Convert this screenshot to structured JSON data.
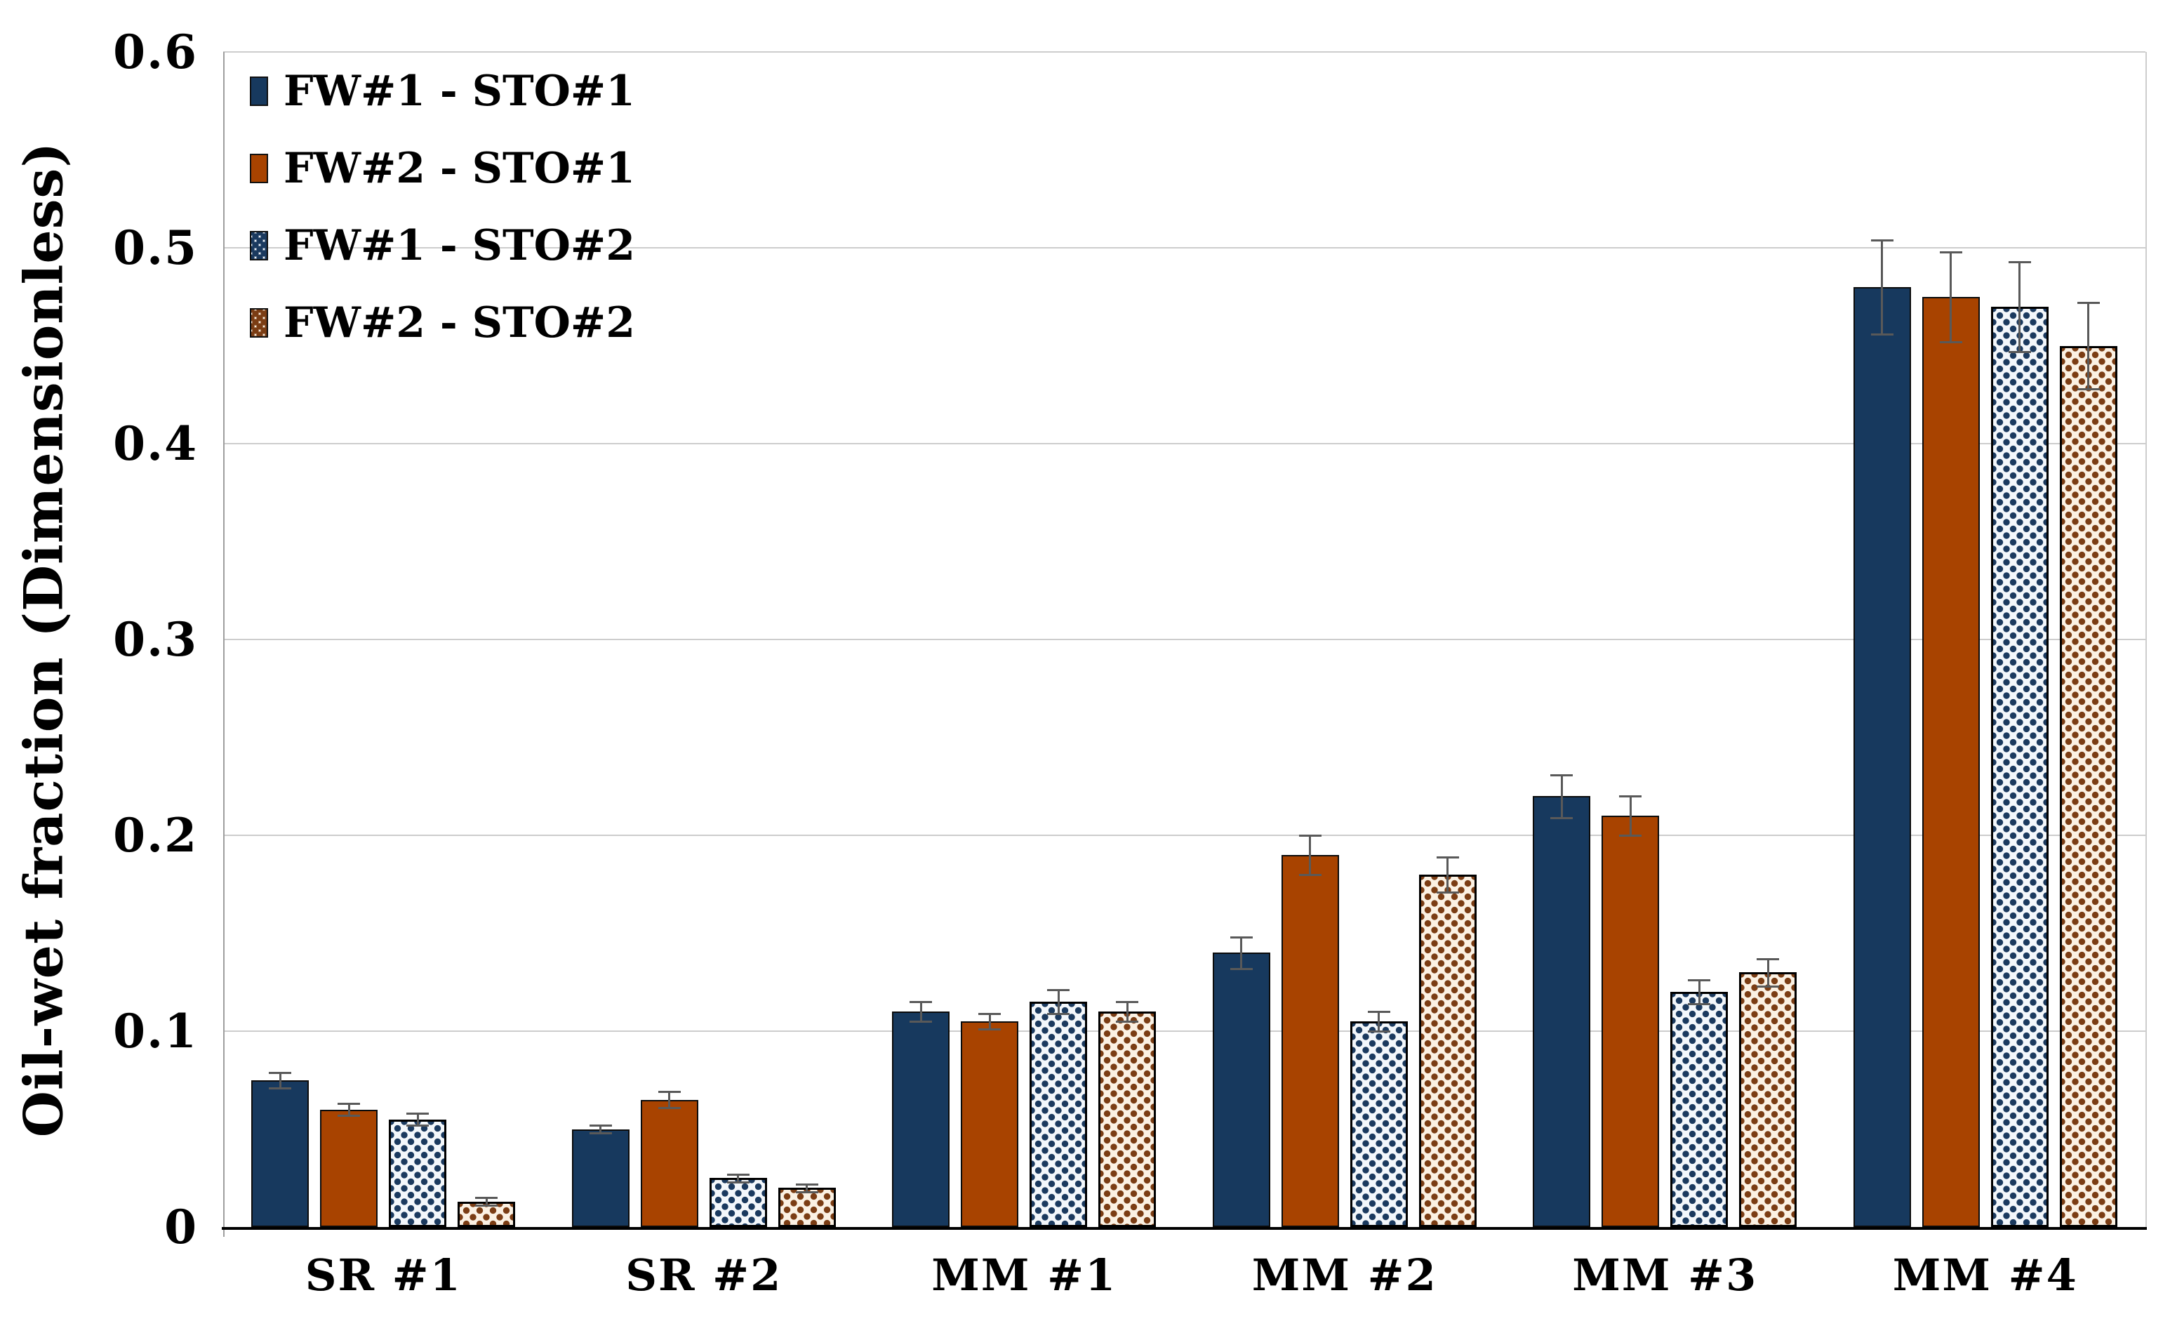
{
  "chart_data": {
    "type": "bar",
    "title": "",
    "xlabel": "",
    "ylabel": "Oil-wet fraction (Dimensionless)",
    "ylim": [
      0,
      0.6
    ],
    "ytick_step": 0.1,
    "yticks": [
      "0",
      "0.1",
      "0.2",
      "0.3",
      "0.4",
      "0.5",
      "0.6"
    ],
    "grid": "horizontal",
    "legend_position": "top-left-inside",
    "categories": [
      "SR #1",
      "SR #2",
      "MM #1",
      "MM #2",
      "MM #3",
      "MM #4"
    ],
    "series": [
      {
        "name": "FW#1 - STO#1",
        "fill": "solid",
        "color": "#17395E",
        "values": [
          0.075,
          0.05,
          0.11,
          0.14,
          0.22,
          0.48
        ],
        "errors": [
          0.004,
          0.002,
          0.005,
          0.008,
          0.011,
          0.024
        ]
      },
      {
        "name": "FW#2 - STO#1",
        "fill": "solid",
        "color": "#A84300",
        "values": [
          0.06,
          0.065,
          0.105,
          0.19,
          0.21,
          0.475
        ],
        "errors": [
          0.003,
          0.004,
          0.004,
          0.01,
          0.01,
          0.023
        ]
      },
      {
        "name": "FW#1 - STO#2",
        "fill": "dotted-blue",
        "color": "#1B3A5F",
        "background": "#F3F7FB",
        "values": [
          0.055,
          0.025,
          0.115,
          0.105,
          0.12,
          0.47
        ],
        "errors": [
          0.003,
          0.002,
          0.006,
          0.005,
          0.006,
          0.023
        ]
      },
      {
        "name": "FW#2 - STO#2",
        "fill": "dotted-orange",
        "color": "#7B3D14",
        "background": "#FBF1E3",
        "values": [
          0.013,
          0.02,
          0.11,
          0.18,
          0.13,
          0.45
        ],
        "errors": [
          0.002,
          0.002,
          0.005,
          0.009,
          0.007,
          0.022
        ]
      }
    ],
    "error_bar_color": "#595959",
    "gridline_color": "#CDCDCD",
    "axis_color": "#000000"
  }
}
